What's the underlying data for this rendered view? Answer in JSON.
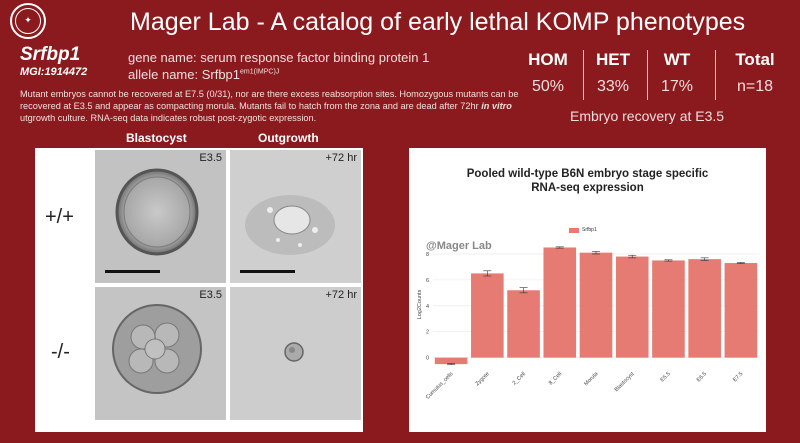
{
  "header": {
    "logo_icon": "university-seal-icon",
    "title": "Mager Lab - A catalog of early lethal KOMP phenotypes"
  },
  "gene": {
    "symbol": "Srfbp1",
    "mgi": "MGI:1914472",
    "name_line": "gene name: serum response factor binding protein 1",
    "allele_prefix": "allele name: Srfbp1",
    "allele_sup": "em1(IMPC)J",
    "description_1": "Mutant embryos cannot be recovered at E7.5 (0/31), nor are there excess reabsorption sites. Homozygous mutants can be recovered at E3.5 and appear as compacting morula. Mutants fail to hatch from the zona and are dead after 72hr ",
    "description_em": "in vitro",
    "description_2": " utgrowth culture. RNA-seq data indicates robust post-zygotic expression."
  },
  "stats": {
    "hom_label": "HOM",
    "hom_value": "50%",
    "het_label": "HET",
    "het_value": "33%",
    "wt_label": "WT",
    "wt_value": "17%",
    "total_label": "Total",
    "total_value": "n=18",
    "caption": "Embryo recovery at E3.5"
  },
  "images": {
    "col_blastocyst": "Blastocyst",
    "col_outgrowth": "Outgrowth",
    "row_wt": "+/+",
    "row_mut": "-/-",
    "tag_e35": "E3.5",
    "tag_72": "+72 hr"
  },
  "chart_data": {
    "type": "bar",
    "title_line1": "Pooled wild-type B6N embryo stage specific",
    "title_line2": "RNA-seq expression",
    "legend": "Srfbp1",
    "watermark": "@Mager Lab",
    "ylabel": "Log2Counts",
    "ylim": [
      -0.8,
      9
    ],
    "yticks": [
      0,
      2,
      4,
      6,
      8
    ],
    "categories": [
      "Cumulus_cells",
      "Zygote",
      "2_Cell",
      "8_Cell",
      "Morula",
      "Blastocyst",
      "E5.5",
      "E6.5",
      "E7.5"
    ],
    "values": [
      -0.5,
      6.5,
      5.2,
      8.5,
      8.1,
      7.8,
      7.5,
      7.6,
      7.3
    ],
    "errors": [
      0.05,
      0.2,
      0.2,
      0.05,
      0.1,
      0.1,
      0.05,
      0.1,
      0.05
    ],
    "color": "#e57b72"
  }
}
